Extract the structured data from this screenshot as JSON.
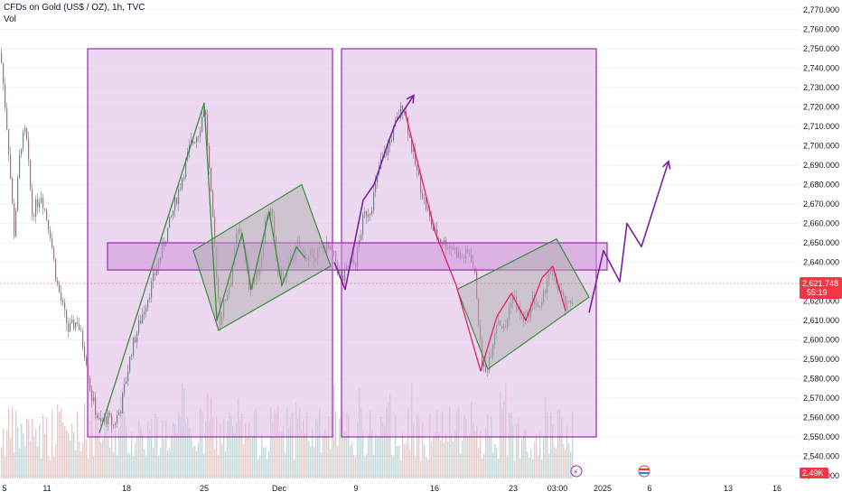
{
  "header": {
    "symbol_line": "CFDs on Gold (US$ / OZ), 1h, TVC",
    "volume_label": "Vol"
  },
  "price_badge": {
    "price": "2,621.748",
    "countdown": "55:19"
  },
  "vol_badge": "2.49K",
  "colors": {
    "up": "#26a69a",
    "down": "#ef5350",
    "zone_fill": "#e1bee7",
    "zone_stroke": "#9c27b0",
    "channel_fill": "#b0b0b0",
    "channel_stroke": "#388e3c",
    "pattern_up": "#388e3c",
    "pattern_down": "#e91e63",
    "projection": "#7b1fa2",
    "badge": "#f23645"
  },
  "chart_data": {
    "type": "candlestick",
    "symbol": "CFDs on Gold (US$ / OZ)",
    "timeframe": "1h",
    "source": "TVC",
    "y_axis": {
      "range": [
        2519,
        2772
      ],
      "ticks": [
        2770,
        2760,
        2750,
        2740,
        2730,
        2720,
        2710,
        2700,
        2690,
        2680,
        2670,
        2660,
        2650,
        2640,
        2630,
        2620,
        2610,
        2600,
        2590,
        2580,
        2570,
        2560,
        2550,
        2540,
        2530
      ],
      "tick_labels": [
        "2,770.000",
        "2,760.000",
        "2,750.000",
        "2,740.000",
        "2,730.000",
        "2,720.000",
        "2,710.000",
        "2,700.000",
        "2,690.000",
        "2,680.000",
        "2,670.000",
        "2,660.000",
        "2,650.000",
        "2,640.000",
        "2,630.000",
        "2,620.000",
        "2,610.000",
        "2,600.000",
        "2,590.000",
        "2,580.000",
        "2,570.000",
        "2,560.000",
        "2,550.000",
        "2,540.000",
        "2,530.000"
      ]
    },
    "x_axis": {
      "tick_labels": [
        "5",
        "11",
        "18",
        "25",
        "Dec",
        "9",
        "16",
        "23",
        "03:00",
        "2025",
        "6",
        "13",
        "16"
      ]
    },
    "last_price": 2621.748,
    "price_path_anchors": [
      [
        0,
        2748
      ],
      [
        8,
        2705
      ],
      [
        15,
        2655
      ],
      [
        22,
        2700
      ],
      [
        28,
        2708
      ],
      [
        35,
        2665
      ],
      [
        45,
        2675
      ],
      [
        55,
        2655
      ],
      [
        62,
        2630
      ],
      [
        75,
        2605
      ],
      [
        85,
        2610
      ],
      [
        95,
        2590
      ],
      [
        100,
        2572
      ],
      [
        110,
        2556
      ],
      [
        118,
        2560
      ],
      [
        125,
        2556
      ],
      [
        133,
        2565
      ],
      [
        145,
        2595
      ],
      [
        160,
        2618
      ],
      [
        175,
        2640
      ],
      [
        190,
        2665
      ],
      [
        200,
        2682
      ],
      [
        210,
        2700
      ],
      [
        220,
        2708
      ],
      [
        226,
        2722
      ],
      [
        232,
        2680
      ],
      [
        238,
        2640
      ],
      [
        243,
        2610
      ],
      [
        248,
        2620
      ],
      [
        255,
        2632
      ],
      [
        262,
        2656
      ],
      [
        268,
        2652
      ],
      [
        275,
        2628
      ],
      [
        282,
        2632
      ],
      [
        288,
        2640
      ],
      [
        294,
        2665
      ],
      [
        300,
        2666
      ],
      [
        306,
        2635
      ],
      [
        314,
        2630
      ],
      [
        322,
        2642
      ],
      [
        330,
        2648
      ],
      [
        340,
        2642
      ],
      [
        350,
        2645
      ],
      [
        360,
        2648
      ],
      [
        370,
        2642
      ],
      [
        378,
        2630
      ],
      [
        385,
        2638
      ],
      [
        393,
        2640
      ],
      [
        402,
        2664
      ],
      [
        410,
        2668
      ],
      [
        420,
        2690
      ],
      [
        428,
        2698
      ],
      [
        438,
        2712
      ],
      [
        446,
        2722
      ],
      [
        452,
        2706
      ],
      [
        460,
        2688
      ],
      [
        470,
        2670
      ],
      [
        480,
        2655
      ],
      [
        490,
        2650
      ],
      [
        500,
        2648
      ],
      [
        510,
        2642
      ],
      [
        520,
        2645
      ],
      [
        526,
        2630
      ],
      [
        532,
        2590
      ],
      [
        537,
        2583
      ],
      [
        543,
        2595
      ],
      [
        550,
        2612
      ],
      [
        558,
        2604
      ],
      [
        566,
        2624
      ],
      [
        574,
        2614
      ],
      [
        582,
        2610
      ],
      [
        590,
        2622
      ],
      [
        598,
        2614
      ],
      [
        606,
        2635
      ],
      [
        614,
        2630
      ],
      [
        620,
        2624
      ],
      [
        626,
        2615
      ],
      [
        634,
        2622
      ]
    ],
    "volume_max": "2.49K",
    "drawings": {
      "zones": [
        {
          "x0": 97,
          "x1": 368,
          "y_top": 2750,
          "y_bottom": 2550
        },
        {
          "x0": 378,
          "x1": 660,
          "y_top": 2750,
          "y_bottom": 2550
        }
      ],
      "horizontal_band": {
        "x0": 119,
        "x1": 672,
        "y_top": 2650,
        "y_bottom": 2636
      },
      "channels": [
        [
          [
            214,
            2646
          ],
          [
            334,
            2680
          ],
          [
            366,
            2638
          ],
          [
            242,
            2605
          ]
        ],
        [
          [
            506,
            2626
          ],
          [
            616,
            2652
          ],
          [
            652,
            2622
          ],
          [
            540,
            2585
          ]
        ]
      ],
      "pattern_up": [
        [
          110,
          2552
        ],
        [
          226,
          2722
        ],
        [
          240,
          2610
        ],
        [
          268,
          2655
        ],
        [
          278,
          2626
        ],
        [
          298,
          2666
        ],
        [
          312,
          2628
        ],
        [
          328,
          2648
        ],
        [
          338,
          2642
        ]
      ],
      "pattern_down": [
        [
          448,
          2718
        ],
        [
          482,
          2655
        ],
        [
          505,
          2628
        ],
        [
          532,
          2584
        ],
        [
          550,
          2612
        ],
        [
          566,
          2624
        ],
        [
          582,
          2610
        ],
        [
          600,
          2632
        ],
        [
          612,
          2638
        ],
        [
          626,
          2615
        ]
      ],
      "projection_arrows": [
        [
          [
            370,
            2640
          ],
          [
            382,
            2626
          ],
          [
            402,
            2672
          ],
          [
            414,
            2680
          ],
          [
            430,
            2702
          ],
          [
            438,
            2712
          ],
          [
            458,
            2726
          ]
        ],
        [
          [
            652,
            2614
          ],
          [
            668,
            2646
          ],
          [
            686,
            2630
          ],
          [
            694,
            2660
          ],
          [
            710,
            2648
          ],
          [
            740,
            2692
          ]
        ]
      ]
    }
  }
}
